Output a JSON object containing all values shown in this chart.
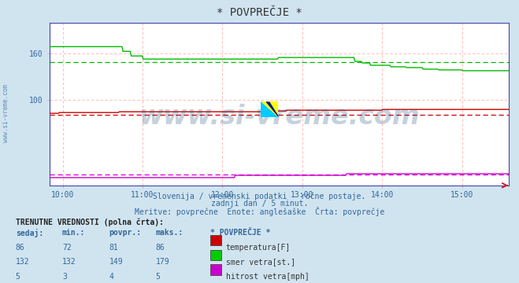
{
  "title": "* POVPREČJE *",
  "bg_color": "#d0e4f0",
  "plot_bg_color": "#ffffff",
  "subtitle1": "Slovenija / vremenski podatki - ročne postaje.",
  "subtitle2": "zadnji dan / 5 minut.",
  "subtitle3": "Meritve: povprečne  Enote: anglešaške  Črta: povprečje",
  "xmin": 9.833,
  "xmax": 15.583,
  "ymin": -10,
  "ymax": 200,
  "xticks": [
    10,
    11,
    12,
    13,
    14,
    15
  ],
  "xtick_labels": [
    "10:00",
    "11:00",
    "12:00",
    "13:00",
    "14:00",
    "15:00"
  ],
  "ytick_vals": [
    100,
    160
  ],
  "ytick_labels": [
    "100",
    "160"
  ],
  "grid_color": "#ffb0b0",
  "watermark": "www.si-vreme.com",
  "watermark_color": "#1a4a7a",
  "watermark_alpha": 0.25,
  "sidebar_text": "www.si-vreme.com",
  "temp_color": "#cc0000",
  "wind_dir_color": "#00bb00",
  "wind_spd_color": "#cc00cc",
  "temp_avg": 81,
  "wind_dir_avg": 149,
  "wind_spd_avg": 4,
  "table_header": "TRENUTNE VREDNOSTI (polna črta):",
  "table_cols": [
    "sedaj:",
    "min.:",
    "povpr.:",
    "maks.:",
    "* POVPREČJE *"
  ],
  "table_data": [
    [
      86,
      72,
      81,
      86,
      "temperatura[F]",
      "#cc0000"
    ],
    [
      132,
      132,
      149,
      179,
      "smer vetra[st.]",
      "#00cc00"
    ],
    [
      5,
      3,
      4,
      5,
      "hitrost vetra[mph]",
      "#cc00cc"
    ]
  ]
}
